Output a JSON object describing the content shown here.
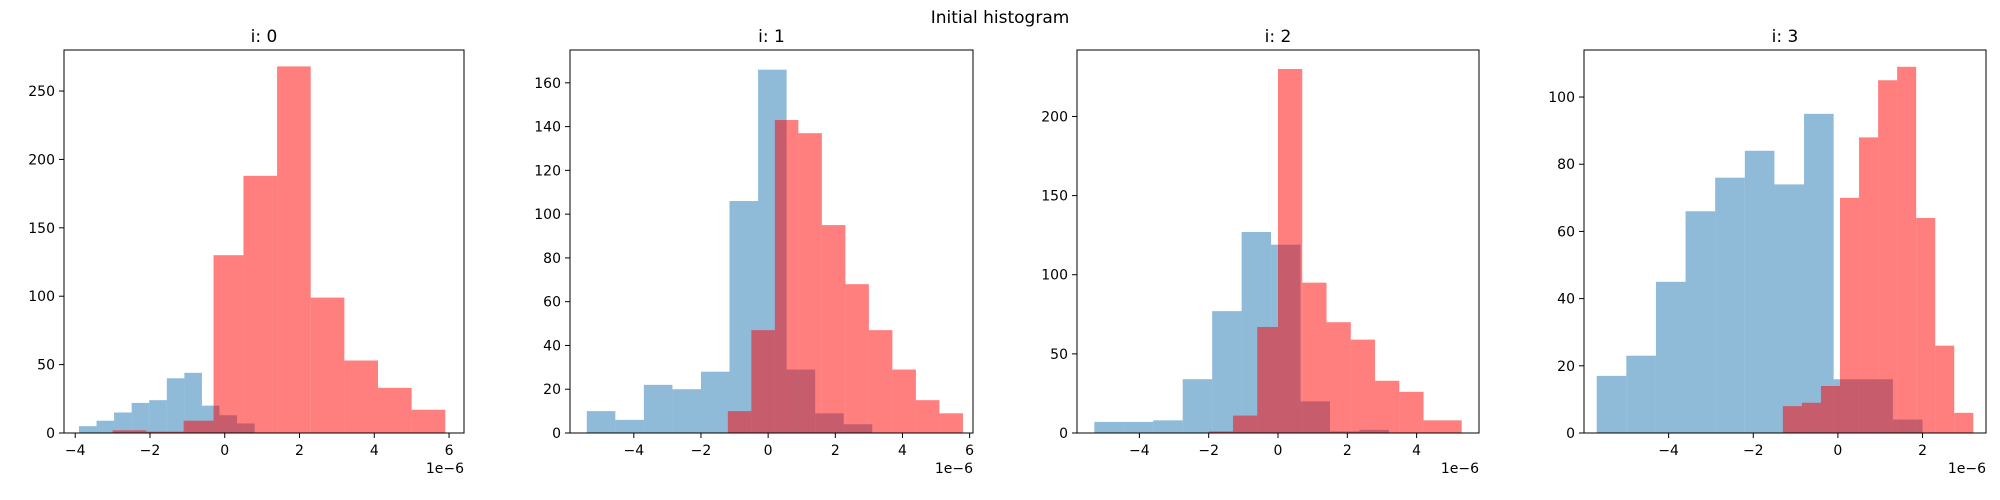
{
  "figure": {
    "title": "Initial histogram"
  },
  "colors": {
    "blue": "#1f77b4",
    "red": "#ff0000",
    "alpha": 0.5
  },
  "chart_data": [
    {
      "type": "histogram",
      "title": "i: 0",
      "xlim": [
        -4.3,
        6.4
      ],
      "ylim": [
        0,
        280
      ],
      "xticks": [
        -4,
        -2,
        0,
        2,
        4,
        6
      ],
      "xtick_labels": [
        "−4",
        "−2",
        "0",
        "2",
        "4",
        "6"
      ],
      "yticks": [
        0,
        50,
        100,
        150,
        200,
        250
      ],
      "x_scale_label": "1e−6",
      "series": [
        {
          "color": "blue",
          "edges": [
            -3.9,
            -3.43,
            -2.96,
            -2.49,
            -2.02,
            -1.55,
            -1.08,
            -0.61,
            -0.14,
            0.33,
            0.8,
            1.27
          ],
          "counts": [
            5,
            9,
            15,
            22,
            24,
            40,
            44,
            20,
            13,
            7,
            0
          ]
        },
        {
          "color": "red",
          "edges": [
            -3.0,
            -2.1,
            -1.1,
            -0.3,
            0.5,
            1.4,
            2.3,
            3.2,
            4.1,
            5.0,
            5.9
          ],
          "counts": [
            2,
            1,
            9,
            130,
            188,
            268,
            99,
            53,
            33,
            17
          ]
        }
      ]
    },
    {
      "type": "histogram",
      "title": "i: 1",
      "xlim": [
        -5.9,
        6.1
      ],
      "ylim": [
        0,
        175
      ],
      "xticks": [
        -4,
        -2,
        0,
        2,
        4,
        6
      ],
      "xtick_labels": [
        "−4",
        "−2",
        "0",
        "2",
        "4",
        "6"
      ],
      "yticks": [
        0,
        20,
        40,
        60,
        80,
        100,
        120,
        140,
        160
      ],
      "x_scale_label": "1e−6",
      "series": [
        {
          "color": "blue",
          "edges": [
            -5.4,
            -4.55,
            -3.7,
            -2.85,
            -2.0,
            -1.15,
            -0.3,
            0.55,
            1.4,
            2.25,
            3.1
          ],
          "counts": [
            10,
            6,
            22,
            20,
            28,
            106,
            166,
            29,
            9,
            4
          ]
        },
        {
          "color": "red",
          "edges": [
            -1.2,
            -0.5,
            0.2,
            0.9,
            1.6,
            2.3,
            3.0,
            3.7,
            4.4,
            5.1,
            5.8
          ],
          "counts": [
            10,
            47,
            143,
            137,
            95,
            68,
            47,
            29,
            15,
            9
          ]
        }
      ]
    },
    {
      "type": "histogram",
      "title": "i: 2",
      "xlim": [
        -5.8,
        5.8
      ],
      "ylim": [
        0,
        242
      ],
      "xticks": [
        -4,
        -2,
        0,
        2,
        4
      ],
      "xtick_labels": [
        "−4",
        "−2",
        "0",
        "2",
        "4"
      ],
      "yticks": [
        0,
        50,
        100,
        150,
        200
      ],
      "x_scale_label": "1e−6",
      "series": [
        {
          "color": "blue",
          "edges": [
            -5.3,
            -4.45,
            -3.6,
            -2.75,
            -1.9,
            -1.05,
            -0.2,
            0.65,
            1.5,
            2.35,
            3.2
          ],
          "counts": [
            7,
            7,
            8,
            34,
            77,
            127,
            119,
            20,
            1,
            2
          ]
        },
        {
          "color": "red",
          "edges": [
            -2.0,
            -1.3,
            -0.6,
            0.0,
            0.7,
            1.4,
            2.1,
            2.8,
            3.5,
            4.2,
            5.3
          ],
          "counts": [
            1,
            11,
            67,
            230,
            95,
            70,
            59,
            33,
            26,
            8
          ]
        }
      ]
    },
    {
      "type": "histogram",
      "title": "i: 3",
      "xlim": [
        -6.0,
        3.5
      ],
      "ylim": [
        0,
        114
      ],
      "xticks": [
        -4,
        -2,
        0,
        2
      ],
      "xtick_labels": [
        "−4",
        "−2",
        "0",
        "2"
      ],
      "yticks": [
        0,
        20,
        40,
        60,
        80,
        100
      ],
      "x_scale_label": "1e−6",
      "series": [
        {
          "color": "blue",
          "edges": [
            -5.7,
            -5.0,
            -4.3,
            -3.6,
            -2.9,
            -2.2,
            -1.5,
            -0.8,
            -0.1,
            0.6,
            1.3,
            2.0
          ],
          "counts": [
            17,
            23,
            45,
            66,
            76,
            84,
            74,
            95,
            16,
            16,
            4
          ]
        },
        {
          "color": "red",
          "edges": [
            -1.3,
            -0.85,
            -0.4,
            0.05,
            0.5,
            0.95,
            1.4,
            1.85,
            2.3,
            2.75,
            3.2
          ],
          "counts": [
            8,
            9,
            14,
            70,
            88,
            105,
            109,
            64,
            26,
            6
          ]
        }
      ]
    }
  ]
}
